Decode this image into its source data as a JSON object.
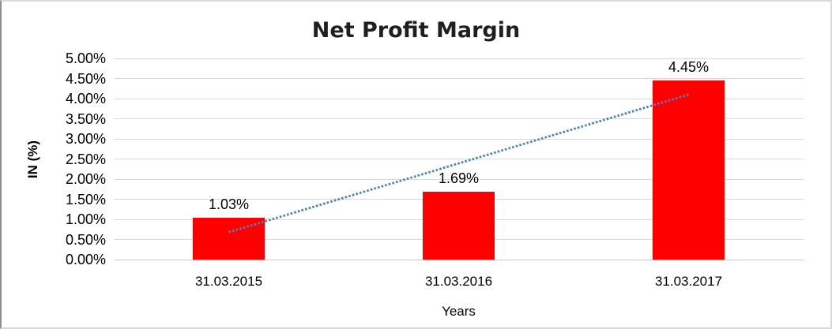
{
  "frame": {
    "background": "#FFFFFF",
    "border_color": "#D9D9D9",
    "border_left_color": "#8F8F8F"
  },
  "chart_data": {
    "type": "bar",
    "title": "Net Profit Margin",
    "categories": [
      "31.03.2015",
      "31.03.2016",
      "31.03.2017"
    ],
    "values": [
      1.03,
      1.69,
      4.45
    ],
    "data_labels": [
      "1.03%",
      "1.69%",
      "4.45%"
    ],
    "xlabel": "Years",
    "ylabel": "IN (%)",
    "ylim": [
      0,
      5
    ],
    "ytick_step": 0.5,
    "ytick_labels": [
      "0.00%",
      "0.50%",
      "1.00%",
      "1.50%",
      "2.00%",
      "2.50%",
      "3.00%",
      "3.50%",
      "4.00%",
      "4.50%",
      "5.00%"
    ],
    "grid": true,
    "legend_position": "none",
    "colors": {
      "bar": "#FF0000",
      "trendline": "#4A80C4",
      "gridline": "#D9D9D9",
      "axis_line": "#C6C6C6",
      "text": "#000000",
      "title_text": "#1F1F1F"
    },
    "trendline": {
      "type": "linear",
      "style": "dotted",
      "start_value": 0.68,
      "end_value": 4.1
    }
  }
}
